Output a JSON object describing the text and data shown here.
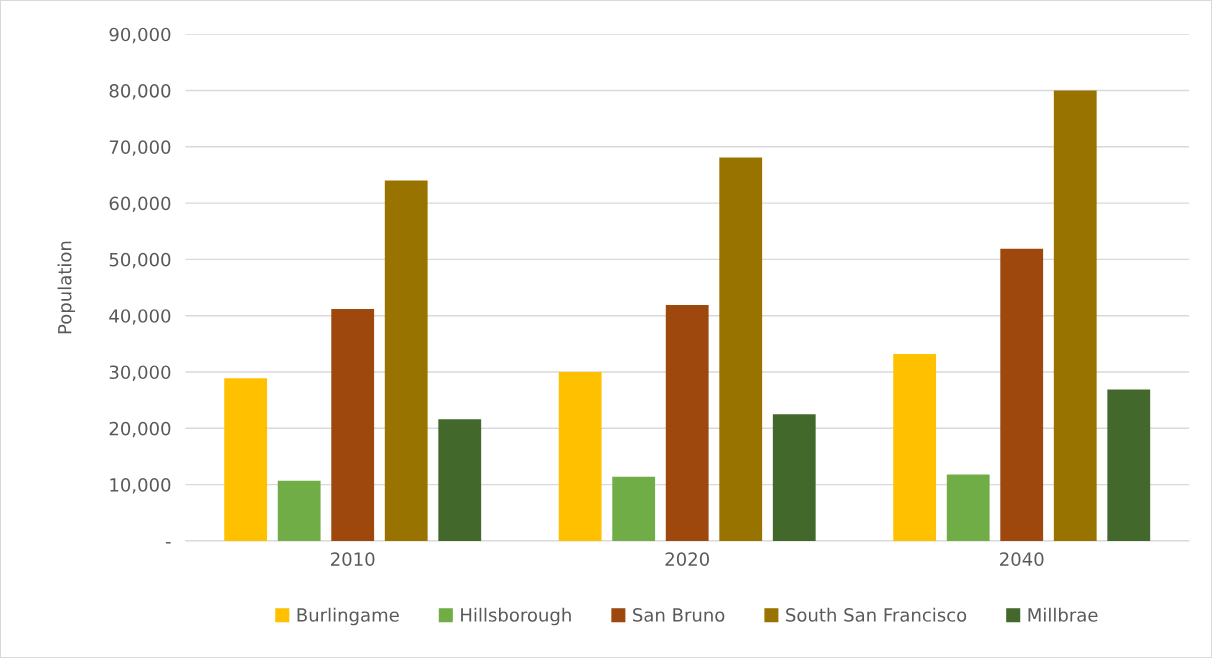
{
  "chart_data": {
    "type": "bar",
    "ylabel": "Population",
    "categories": [
      "2010",
      "2020",
      "2040"
    ],
    "series": [
      {
        "name": "Burlingame",
        "color": "#ffc000",
        "values": [
          28900,
          30000,
          33200
        ]
      },
      {
        "name": "Hillsborough",
        "color": "#70ad47",
        "values": [
          10700,
          11400,
          11800
        ]
      },
      {
        "name": "San Bruno",
        "color": "#9e480e",
        "values": [
          41200,
          41900,
          51900
        ]
      },
      {
        "name": "South San Francisco",
        "color": "#997300",
        "values": [
          64000,
          68100,
          80000
        ]
      },
      {
        "name": "Millbrae",
        "color": "#43682b",
        "values": [
          21600,
          22500,
          26900
        ]
      }
    ],
    "ylim": [
      0,
      90000
    ],
    "yticks": [
      {
        "value": 0,
        "label": "-"
      },
      {
        "value": 10000,
        "label": "10,000"
      },
      {
        "value": 20000,
        "label": "20,000"
      },
      {
        "value": 30000,
        "label": "30,000"
      },
      {
        "value": 40000,
        "label": "40,000"
      },
      {
        "value": 50000,
        "label": "50,000"
      },
      {
        "value": 60000,
        "label": "60,000"
      },
      {
        "value": 70000,
        "label": "70,000"
      },
      {
        "value": 80000,
        "label": "80,000"
      },
      {
        "value": 90000,
        "label": "90,000"
      }
    ],
    "grid": "y",
    "legend": "bottom"
  }
}
